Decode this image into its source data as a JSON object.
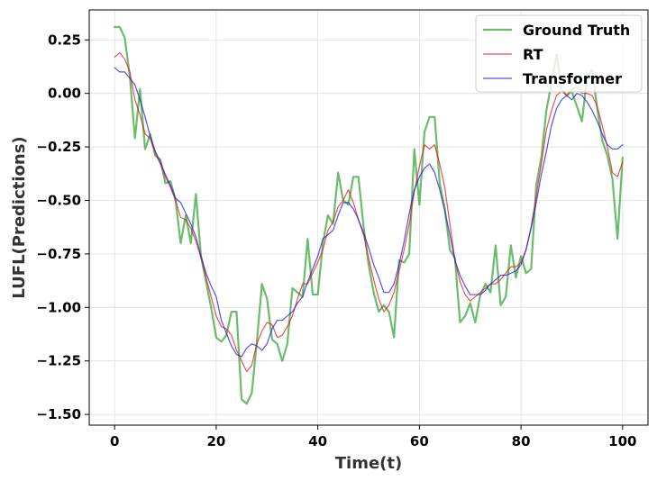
{
  "chart_data": {
    "type": "line",
    "xlabel": "Time(t)",
    "ylabel": "LUFL(Predictions)",
    "xlim": [
      -5,
      105
    ],
    "ylim": [
      -1.55,
      0.39
    ],
    "xticks": [
      0,
      20,
      40,
      60,
      80,
      100
    ],
    "yticks": [
      0.25,
      0.0,
      -0.25,
      -0.5,
      -0.75,
      -1.0,
      -1.25,
      -1.5
    ],
    "ytick_labels": [
      "0.25",
      "0.00",
      "−0.25",
      "−0.50",
      "−0.75",
      "−1.00",
      "−1.25",
      "−1.50"
    ],
    "grid": true,
    "legend_position": "top-right",
    "series": [
      {
        "name": "Ground Truth",
        "color": "#2ca02c",
        "values": [
          0.31,
          0.31,
          0.26,
          0.08,
          -0.21,
          0.02,
          -0.26,
          -0.19,
          -0.29,
          -0.31,
          -0.42,
          -0.41,
          -0.5,
          -0.7,
          -0.57,
          -0.7,
          -0.47,
          -0.76,
          -0.88,
          -1.0,
          -1.14,
          -1.16,
          -1.13,
          -1.02,
          -1.02,
          -1.43,
          -1.45,
          -1.4,
          -1.16,
          -0.89,
          -0.96,
          -1.15,
          -1.17,
          -1.25,
          -1.17,
          -0.91,
          -0.93,
          -0.95,
          -0.68,
          -0.94,
          -0.94,
          -0.7,
          -0.57,
          -0.61,
          -0.37,
          -0.5,
          -0.52,
          -0.39,
          -0.39,
          -0.62,
          -0.8,
          -0.93,
          -1.02,
          -0.99,
          -1.02,
          -1.14,
          -0.78,
          -0.79,
          -0.75,
          -0.26,
          -0.52,
          -0.18,
          -0.11,
          -0.11,
          -0.42,
          -0.54,
          -0.73,
          -0.77,
          -1.07,
          -1.04,
          -0.98,
          -1.07,
          -0.94,
          -0.89,
          -0.93,
          -0.71,
          -0.99,
          -0.95,
          -0.71,
          -0.86,
          -0.76,
          -0.84,
          -0.82,
          -0.43,
          -0.3,
          -0.08,
          0.05,
          0.18,
          0.02,
          -0.01,
          0.01,
          -0.06,
          -0.13,
          0.07,
          0.11,
          -0.07,
          -0.22,
          -0.29,
          -0.4,
          -0.68,
          -0.3
        ],
        "line_width": 2.2,
        "opacity": 0.7
      },
      {
        "name": "RT",
        "color": "#e41a1c",
        "values": [
          0.17,
          0.19,
          0.16,
          0.1,
          -0.03,
          -0.1,
          -0.19,
          -0.21,
          -0.28,
          -0.33,
          -0.39,
          -0.44,
          -0.5,
          -0.58,
          -0.59,
          -0.63,
          -0.69,
          -0.77,
          -0.86,
          -0.95,
          -1.04,
          -1.09,
          -1.1,
          -1.13,
          -1.2,
          -1.25,
          -1.3,
          -1.27,
          -1.17,
          -1.11,
          -1.07,
          -1.08,
          -1.14,
          -1.13,
          -1.09,
          -1.04,
          -0.96,
          -0.89,
          -0.89,
          -0.84,
          -0.79,
          -0.73,
          -0.64,
          -0.6,
          -0.53,
          -0.5,
          -0.45,
          -0.51,
          -0.59,
          -0.66,
          -0.77,
          -0.87,
          -0.96,
          -1.02,
          -0.99,
          -0.93,
          -0.83,
          -0.73,
          -0.61,
          -0.46,
          -0.34,
          -0.24,
          -0.26,
          -0.24,
          -0.33,
          -0.44,
          -0.61,
          -0.78,
          -0.88,
          -0.94,
          -0.97,
          -0.95,
          -0.93,
          -0.91,
          -0.89,
          -0.89,
          -0.87,
          -0.84,
          -0.81,
          -0.81,
          -0.79,
          -0.73,
          -0.62,
          -0.48,
          -0.33,
          -0.17,
          -0.08,
          -0.01,
          0.01,
          -0.01,
          0.02,
          0.03,
          0.0,
          0.0,
          -0.01,
          -0.06,
          -0.15,
          -0.25,
          -0.37,
          -0.39,
          -0.32
        ],
        "line_width": 1.2,
        "opacity": 0.75
      },
      {
        "name": "Transformer",
        "color": "#1a1adb",
        "values": [
          0.12,
          0.1,
          0.1,
          0.07,
          0.04,
          -0.03,
          -0.11,
          -0.2,
          -0.27,
          -0.32,
          -0.38,
          -0.43,
          -0.49,
          -0.51,
          -0.56,
          -0.61,
          -0.67,
          -0.76,
          -0.84,
          -0.9,
          -0.95,
          -1.06,
          -1.12,
          -1.18,
          -1.22,
          -1.23,
          -1.19,
          -1.17,
          -1.18,
          -1.2,
          -1.17,
          -1.1,
          -1.06,
          -1.06,
          -1.04,
          -1.02,
          -0.98,
          -0.95,
          -0.88,
          -0.82,
          -0.76,
          -0.68,
          -0.66,
          -0.64,
          -0.57,
          -0.51,
          -0.51,
          -0.54,
          -0.59,
          -0.65,
          -0.72,
          -0.8,
          -0.86,
          -0.93,
          -0.93,
          -0.89,
          -0.8,
          -0.69,
          -0.56,
          -0.45,
          -0.39,
          -0.35,
          -0.33,
          -0.37,
          -0.45,
          -0.55,
          -0.66,
          -0.78,
          -0.85,
          -0.9,
          -0.94,
          -0.94,
          -0.94,
          -0.92,
          -0.89,
          -0.87,
          -0.85,
          -0.85,
          -0.84,
          -0.83,
          -0.8,
          -0.73,
          -0.63,
          -0.51,
          -0.38,
          -0.27,
          -0.15,
          -0.07,
          -0.03,
          -0.01,
          -0.03,
          0.0,
          -0.01,
          -0.04,
          -0.08,
          -0.13,
          -0.19,
          -0.24,
          -0.26,
          -0.26,
          -0.24
        ],
        "line_width": 1.2,
        "opacity": 0.75
      }
    ]
  }
}
